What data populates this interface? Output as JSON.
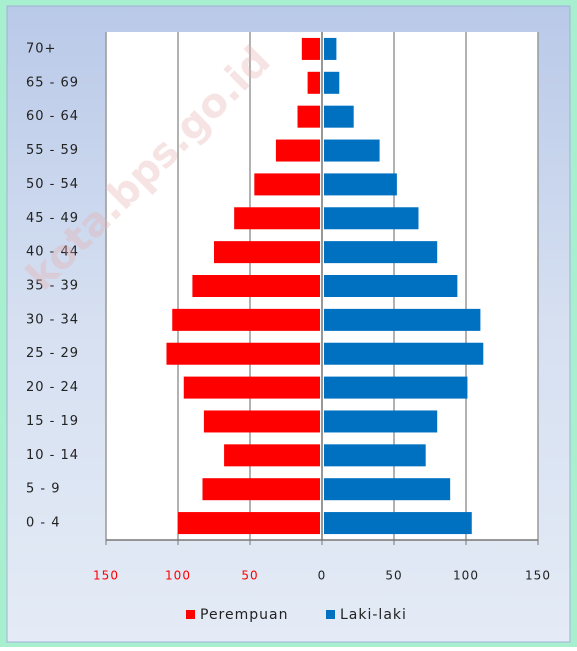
{
  "chart_data": {
    "type": "pyramid",
    "watermark": "kota.bps.go.id",
    "categories": [
      "70+",
      "65 - 69",
      "60 - 64",
      "55 - 59",
      "50 - 54",
      "45 - 49",
      "40 - 44",
      "35 - 39",
      "30 - 34",
      "25 - 29",
      "20 - 24",
      "15 - 19",
      "10 - 14",
      "5 - 9",
      "0 - 4"
    ],
    "series": [
      {
        "name": "Perempuan",
        "color": "#ff0000",
        "values": [
          -14,
          -10,
          -17,
          -32,
          -47,
          -61,
          -75,
          -90,
          -104,
          -108,
          -96,
          -82,
          -68,
          -83,
          -100
        ]
      },
      {
        "name": "Laki-laki",
        "color": "#0070c0",
        "values": [
          10,
          12,
          22,
          40,
          52,
          67,
          80,
          94,
          110,
          112,
          101,
          80,
          72,
          89,
          104
        ]
      }
    ],
    "xlim": [
      -150,
      150
    ],
    "xticks": [
      {
        "value": -150,
        "label": "150"
      },
      {
        "value": -100,
        "label": "100"
      },
      {
        "value": -50,
        "label": "50"
      },
      0,
      50,
      100,
      150
    ],
    "negative_tick_color": "#ff0000",
    "grid": true,
    "legend": "bottom"
  }
}
